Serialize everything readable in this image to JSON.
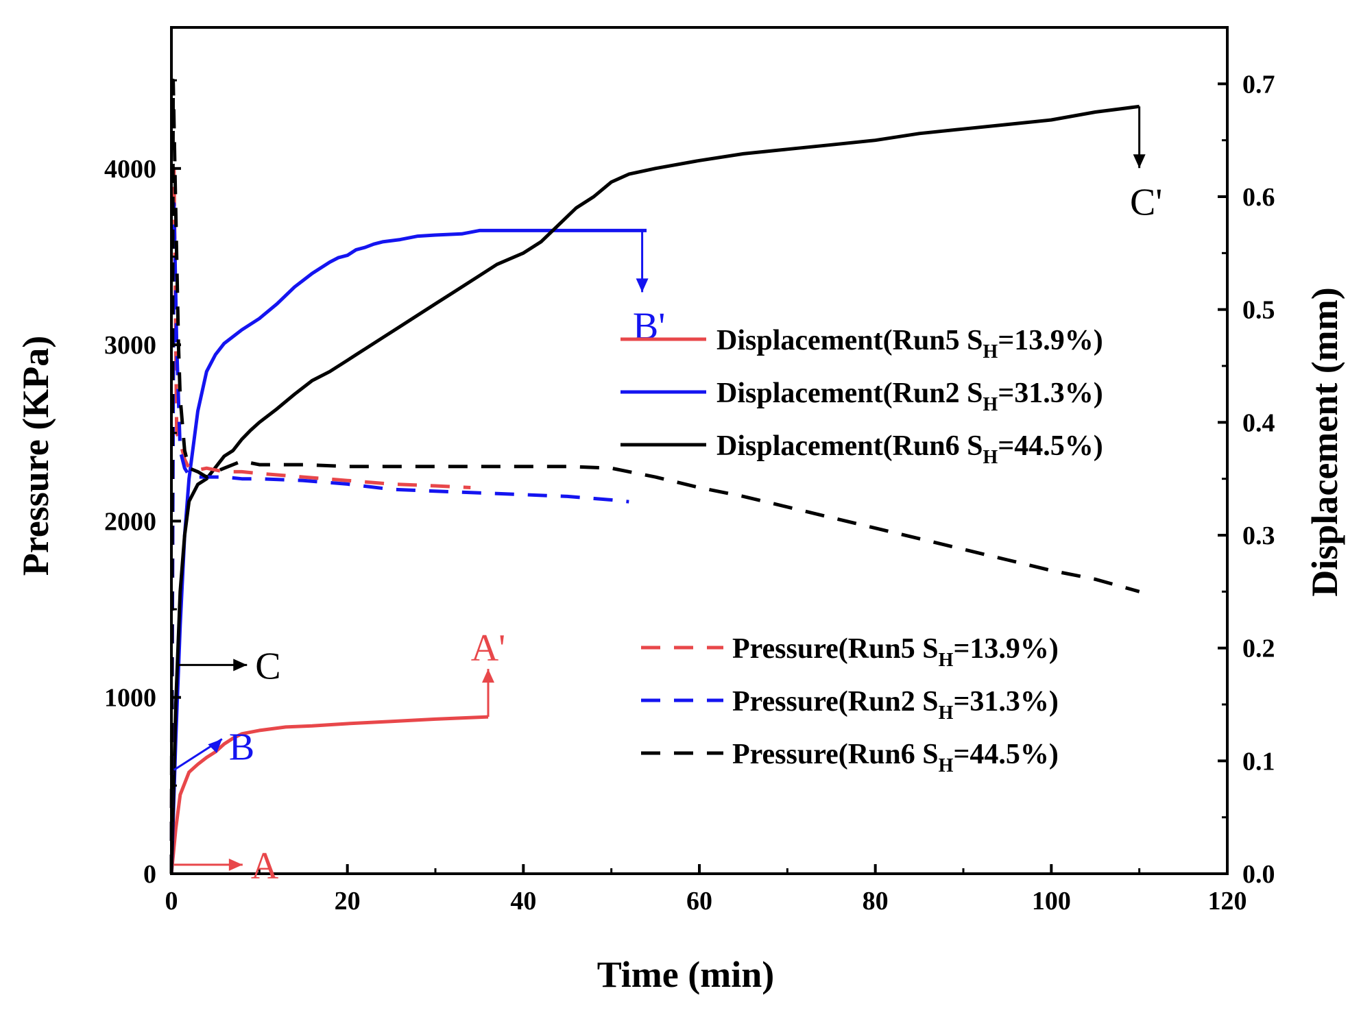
{
  "chart_data": {
    "type": "line",
    "xlabel": "Time (min)",
    "ylabel": "Pressure (KPa)",
    "y2label": "Displacement (mm)",
    "xlim": [
      0,
      120
    ],
    "ylim": [
      0,
      4800
    ],
    "y2lim": [
      0,
      0.75
    ],
    "x_ticks": [
      0,
      20,
      40,
      60,
      80,
      100,
      120
    ],
    "y_ticks": [
      0,
      1000,
      2000,
      3000,
      4000
    ],
    "y2_ticks": [
      0.0,
      0.1,
      0.2,
      0.3,
      0.4,
      0.5,
      0.6,
      0.7
    ],
    "x_tick_labels": [
      "0",
      "20",
      "40",
      "60",
      "80",
      "100",
      "120"
    ],
    "y_tick_labels": [
      "0",
      "1000",
      "2000",
      "3000",
      "4000"
    ],
    "y2_tick_labels": [
      "0.0",
      "0.1",
      "0.2",
      "0.3",
      "0.4",
      "0.5",
      "0.6",
      "0.7"
    ],
    "legend_top": [
      {
        "prefix": "Displacement(Run5 S",
        "sub": "H",
        "suffix": "=13.9%)",
        "color": "#e8474a",
        "dash": false
      },
      {
        "prefix": "Displacement(Run2 S",
        "sub": "H",
        "suffix": "=31.3%)",
        "color": "#1414f0",
        "dash": false
      },
      {
        "prefix": "Displacement(Run6 S",
        "sub": "H",
        "suffix": "=44.5%)",
        "color": "#000000",
        "dash": false
      }
    ],
    "legend_bottom": [
      {
        "prefix": "Pressure(Run5 S",
        "sub": "H",
        "suffix": "=13.9%)",
        "color": "#e8474a",
        "dash": true
      },
      {
        "prefix": "Pressure(Run2 S",
        "sub": "H",
        "suffix": "=31.3%)",
        "color": "#1414f0",
        "dash": true
      },
      {
        "prefix": "Pressure(Run6 S",
        "sub": "H",
        "suffix": "=44.5%)",
        "color": "#000000",
        "dash": true
      }
    ],
    "series": [
      {
        "name": "Displacement(Run5 SH=13.9%)",
        "axis": "right",
        "color": "#e8474a",
        "dash": false,
        "x": [
          0,
          0.5,
          1,
          2,
          3,
          4,
          5,
          6,
          7,
          8,
          10,
          13,
          16,
          20,
          25,
          30,
          36
        ],
        "values": [
          0,
          0.04,
          0.07,
          0.09,
          0.097,
          0.103,
          0.108,
          0.115,
          0.12,
          0.124,
          0.127,
          0.13,
          0.131,
          0.133,
          0.135,
          0.137,
          0.139
        ]
      },
      {
        "name": "Displacement(Run2 SH=31.3%)",
        "axis": "right",
        "color": "#1414f0",
        "dash": false,
        "x": [
          0,
          0.5,
          1,
          1.5,
          2,
          2.5,
          3,
          4,
          5,
          6,
          8,
          10,
          12,
          14,
          15,
          16,
          18,
          19,
          20,
          21,
          22,
          23,
          24,
          26,
          28,
          30,
          33,
          35,
          40,
          45,
          50,
          54
        ],
        "values": [
          0,
          0.12,
          0.22,
          0.3,
          0.35,
          0.38,
          0.41,
          0.445,
          0.46,
          0.47,
          0.482,
          0.492,
          0.505,
          0.52,
          0.526,
          0.532,
          0.542,
          0.546,
          0.548,
          0.553,
          0.555,
          0.558,
          0.56,
          0.562,
          0.565,
          0.566,
          0.567,
          0.57,
          0.57,
          0.57,
          0.57,
          0.57
        ]
      },
      {
        "name": "Displacement(Run6 SH=44.5%)",
        "axis": "right",
        "color": "#000000",
        "dash": false,
        "x": [
          0,
          0.5,
          1,
          1.5,
          2,
          3,
          4,
          5,
          6,
          7,
          8,
          9,
          10,
          12,
          14,
          16,
          18,
          20,
          21,
          22,
          24,
          26,
          28,
          30,
          32,
          35,
          37,
          40,
          42,
          44,
          46,
          48,
          50,
          52,
          55,
          60,
          65,
          70,
          75,
          80,
          85,
          90,
          95,
          100,
          105,
          108,
          110
        ],
        "values": [
          0,
          0.15,
          0.25,
          0.3,
          0.33,
          0.345,
          0.35,
          0.36,
          0.37,
          0.375,
          0.385,
          0.393,
          0.4,
          0.412,
          0.425,
          0.437,
          0.445,
          0.455,
          0.46,
          0.465,
          0.475,
          0.485,
          0.495,
          0.505,
          0.515,
          0.53,
          0.54,
          0.55,
          0.56,
          0.575,
          0.59,
          0.6,
          0.613,
          0.62,
          0.625,
          0.632,
          0.638,
          0.642,
          0.646,
          0.65,
          0.656,
          0.66,
          0.664,
          0.668,
          0.675,
          0.678,
          0.68
        ]
      },
      {
        "name": "Pressure(Run5 SH=13.9%)",
        "axis": "left",
        "color": "#e8474a",
        "dash": true,
        "x": [
          0,
          0.3,
          0.6,
          1,
          1.5,
          2,
          3,
          4,
          5,
          6,
          8,
          10,
          15,
          20,
          25,
          30,
          34
        ],
        "values": [
          0,
          4000,
          2500,
          2450,
          2350,
          2300,
          2290,
          2300,
          2290,
          2280,
          2280,
          2270,
          2250,
          2230,
          2210,
          2200,
          2190
        ]
      },
      {
        "name": "Pressure(Run2 SH=31.3%)",
        "axis": "left",
        "color": "#1414f0",
        "dash": true,
        "x": [
          0,
          0.3,
          0.6,
          1,
          1.5,
          2,
          3,
          4,
          5,
          6,
          8,
          10,
          15,
          20,
          25,
          30,
          35,
          40,
          45,
          50,
          52
        ],
        "values": [
          0,
          3800,
          3000,
          2400,
          2300,
          2260,
          2250,
          2250,
          2250,
          2250,
          2240,
          2240,
          2230,
          2210,
          2180,
          2170,
          2160,
          2150,
          2140,
          2120,
          2110
        ]
      },
      {
        "name": "Pressure(Run6 SH=44.5%)",
        "axis": "left",
        "color": "#000000",
        "dash": true,
        "x": [
          0,
          0.2,
          0.4,
          0.6,
          0.8,
          1,
          1.5,
          2,
          3,
          4,
          5,
          6,
          7,
          8,
          10,
          15,
          20,
          25,
          30,
          35,
          40,
          45,
          50,
          55,
          60,
          65,
          70,
          75,
          80,
          85,
          90,
          95,
          100,
          105,
          110
        ],
        "values": [
          0,
          4500,
          4000,
          3500,
          3000,
          2700,
          2400,
          2300,
          2280,
          2250,
          2280,
          2300,
          2320,
          2340,
          2320,
          2320,
          2310,
          2310,
          2310,
          2310,
          2310,
          2310,
          2300,
          2250,
          2190,
          2140,
          2080,
          2020,
          1960,
          1900,
          1840,
          1780,
          1720,
          1670,
          1600
        ]
      }
    ],
    "annotations": [
      {
        "label": "A",
        "color": "#e8474a",
        "arrow": "right",
        "at_x": 0.3,
        "at_y2": 0.008
      },
      {
        "label": "B",
        "color": "#1414f0",
        "arrow": "up-right",
        "at_x": 0.3,
        "at_y2": 0.092
      },
      {
        "label": "C",
        "color": "#000000",
        "arrow": "right",
        "at_x": 0.8,
        "at_y2": 0.185
      },
      {
        "label": "A'",
        "color": "#e8474a",
        "arrow": "up",
        "at_x": 36,
        "at_y2": 0.139
      },
      {
        "label": "B'",
        "color": "#1414f0",
        "arrow": "down",
        "at_x": 53.5,
        "at_y2": 0.57
      },
      {
        "label": "C'",
        "color": "#000000",
        "arrow": "down",
        "at_x": 110,
        "at_y2": 0.68
      }
    ]
  }
}
